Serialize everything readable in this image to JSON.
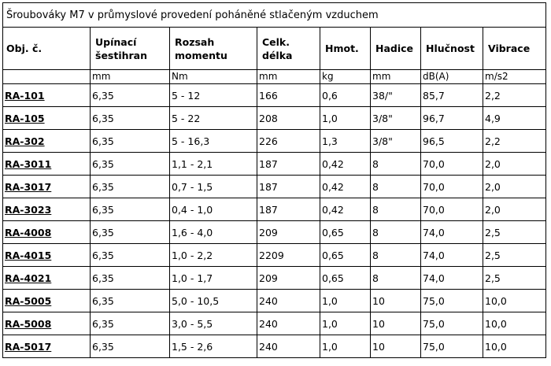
{
  "title": "Šroubováky M7 v průmyslové provedení poháněné stlačeným vzduchem",
  "headers": [
    "Obj. č.",
    "Upínací šestihran",
    "Rozsah momentu",
    "Celk. délka",
    "Hmot.",
    "Hadice",
    "Hlučnost",
    "Vibrace"
  ],
  "units": [
    "",
    "mm",
    "Nm",
    "mm",
    "kg",
    "mm",
    "dB(A)",
    "m/s2"
  ],
  "rows": [
    [
      "RA-101",
      "6,35",
      "5 - 12",
      "166",
      "0,6",
      "38/\"",
      "85,7",
      "2,2"
    ],
    [
      "RA-105",
      "6,35",
      "5 - 22",
      "208",
      "1,0",
      "3/8\"",
      "96,7",
      "4,9"
    ],
    [
      "RA-302",
      "6,35",
      "5 - 16,3",
      "226",
      "1,3",
      "3/8\"",
      "96,5",
      "2,2"
    ],
    [
      "RA-3011",
      "6,35",
      "1,1 - 2,1",
      "187",
      "0,42",
      "8",
      "70,0",
      "2,0"
    ],
    [
      "RA-3017",
      "6,35",
      "0,7 - 1,5",
      "187",
      "0,42",
      "8",
      "70,0",
      "2,0"
    ],
    [
      "RA-3023",
      "6,35",
      "0,4 - 1,0",
      "187",
      "0,42",
      "8",
      "70,0",
      "2,0"
    ],
    [
      "RA-4008",
      "6,35",
      "1,6 - 4,0",
      "209",
      "0,65",
      "8",
      "74,0",
      "2,5"
    ],
    [
      "RA-4015",
      "6,35",
      "1,0 - 2,2",
      "2209",
      "0,65",
      "8",
      "74,0",
      "2,5"
    ],
    [
      "RA-4021",
      "6,35",
      "1,0 - 1,7",
      "209",
      "0,65",
      "8",
      "74,0",
      "2,5"
    ],
    [
      "RA-5005",
      "6,35",
      "5,0 - 10,5",
      "240",
      "1,0",
      "10",
      "75,0",
      "10,0"
    ],
    [
      "RA-5008",
      "6,35",
      "3,0 - 5,5",
      "240",
      "1,0",
      "10",
      "75,0",
      "10,0"
    ],
    [
      "RA-5017",
      "6,35",
      "1,5 - 2,6",
      "240",
      "1,0",
      "10",
      "75,0",
      "10,0"
    ]
  ]
}
